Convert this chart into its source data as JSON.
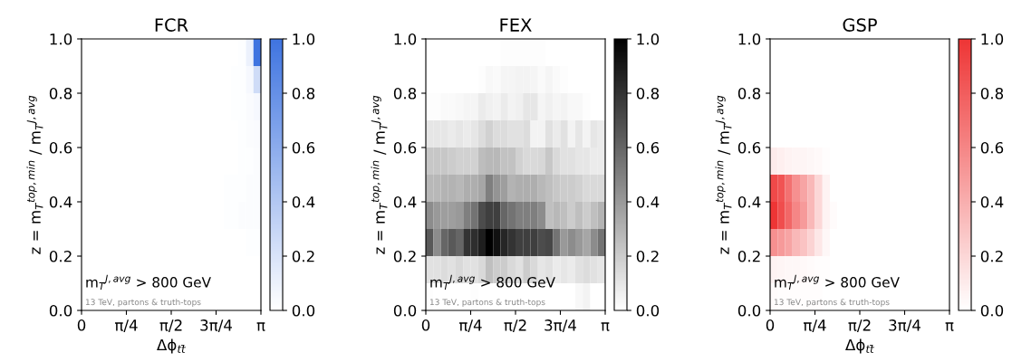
{
  "chart_data": [
    {
      "type": "heatmap",
      "title": "FCR",
      "color": "#3f74e0",
      "xlabel": "Δϕ$_{tt̄}$",
      "ylabel": "z = m$_{T}$$^{top,min}$ / m$_{T}$$^{J,avg}$",
      "annotations": [
        "m$_{T}$$^{J,avg}$ > 800 GeV",
        "13 TeV, partons & truth-tops"
      ],
      "xlim": [
        0,
        3.14159
      ],
      "xticks": [
        {
          "value": 0,
          "label": "0"
        },
        {
          "value": 0.7854,
          "label": "π/4"
        },
        {
          "value": 1.5708,
          "label": "π/2"
        },
        {
          "value": 2.3562,
          "label": "3π/4"
        },
        {
          "value": 3.14159,
          "label": "π"
        }
      ],
      "ylim": [
        0,
        1
      ],
      "yticks": [
        {
          "value": 0,
          "label": "0.0"
        },
        {
          "value": 0.2,
          "label": "0.2"
        },
        {
          "value": 0.4,
          "label": "0.4"
        },
        {
          "value": 0.6,
          "label": "0.6"
        },
        {
          "value": 0.8,
          "label": "0.8"
        },
        {
          "value": 1,
          "label": "1.0"
        }
      ],
      "clim": [
        0,
        1
      ],
      "cticks": [
        {
          "value": 0,
          "label": "0.0"
        },
        {
          "value": 0.2,
          "label": "0.2"
        },
        {
          "value": 0.4,
          "label": "0.4"
        },
        {
          "value": 0.6,
          "label": "0.6"
        },
        {
          "value": 0.8,
          "label": "0.8"
        },
        {
          "value": 1,
          "label": "1.0"
        }
      ],
      "cells": [
        [
          0,
          0,
          0,
          0,
          0,
          0,
          0,
          0,
          0,
          0,
          0,
          0,
          0,
          0,
          0,
          0,
          0,
          0,
          0,
          0,
          0,
          0.01,
          0.1,
          1.0
        ],
        [
          0,
          0,
          0,
          0,
          0,
          0,
          0,
          0,
          0,
          0,
          0,
          0,
          0,
          0,
          0,
          0,
          0,
          0,
          0,
          0,
          0.01,
          0.01,
          0.05,
          0.25
        ],
        [
          0,
          0,
          0,
          0,
          0,
          0,
          0,
          0,
          0,
          0,
          0,
          0,
          0,
          0,
          0,
          0,
          0,
          0,
          0,
          0,
          0.01,
          0.01,
          0.03,
          0.05
        ],
        [
          0,
          0,
          0,
          0,
          0,
          0,
          0,
          0,
          0,
          0,
          0,
          0,
          0,
          0,
          0,
          0,
          0,
          0,
          0,
          0,
          0,
          0.01,
          0.02,
          0.03
        ],
        [
          0,
          0,
          0,
          0,
          0,
          0,
          0,
          0,
          0,
          0,
          0,
          0,
          0,
          0,
          0,
          0,
          0,
          0,
          0,
          0,
          0,
          0.01,
          0.01,
          0.02
        ],
        [
          0,
          0,
          0,
          0,
          0,
          0,
          0,
          0,
          0,
          0,
          0,
          0,
          0,
          0,
          0,
          0,
          0,
          0,
          0,
          0.01,
          0.01,
          0.01,
          0.02,
          0.02
        ],
        [
          0,
          0,
          0,
          0,
          0,
          0,
          0,
          0,
          0,
          0,
          0,
          0,
          0,
          0,
          0,
          0,
          0,
          0,
          0,
          0.01,
          0.01,
          0.02,
          0.02,
          0.02
        ],
        [
          0,
          0,
          0,
          0,
          0,
          0,
          0,
          0,
          0,
          0,
          0,
          0,
          0,
          0,
          0,
          0,
          0,
          0,
          0,
          0,
          0,
          0,
          0.01,
          0.01
        ],
        [
          0,
          0,
          0,
          0,
          0,
          0,
          0,
          0,
          0,
          0,
          0,
          0,
          0,
          0,
          0,
          0,
          0,
          0,
          0,
          0,
          0,
          0,
          0,
          0
        ],
        [
          0,
          0,
          0,
          0,
          0,
          0,
          0,
          0,
          0,
          0,
          0,
          0,
          0,
          0,
          0,
          0,
          0,
          0,
          0,
          0,
          0,
          0,
          0,
          0
        ]
      ]
    },
    {
      "type": "heatmap",
      "title": "FEX",
      "color": "#000000",
      "xlabel": null,
      "ylabel": "z = m$_{T}$$^{top,min}$ / m$_{T}$$^{J,avg}$",
      "annotations": [
        "m$_{T}$$^{J,avg}$ > 800 GeV",
        "13 TeV, partons & truth-tops"
      ],
      "xlim": [
        0,
        3.14159
      ],
      "xticks": [
        {
          "value": 0,
          "label": "0"
        },
        {
          "value": 0.7854,
          "label": "π/4"
        },
        {
          "value": 1.5708,
          "label": "π/2"
        },
        {
          "value": 2.3562,
          "label": "3π/4"
        },
        {
          "value": 3.14159,
          "label": "π"
        }
      ],
      "ylim": [
        0,
        1
      ],
      "yticks": [
        {
          "value": 0,
          "label": "0.0"
        },
        {
          "value": 0.2,
          "label": "0.2"
        },
        {
          "value": 0.4,
          "label": "0.4"
        },
        {
          "value": 0.6,
          "label": "0.6"
        },
        {
          "value": 0.8,
          "label": "0.8"
        },
        {
          "value": 1,
          "label": "1.0"
        }
      ],
      "clim": [
        0,
        1
      ],
      "cticks": [
        {
          "value": 0,
          "label": "0.0"
        },
        {
          "value": 0.2,
          "label": "0.2"
        },
        {
          "value": 0.4,
          "label": "0.4"
        },
        {
          "value": 0.6,
          "label": "0.6"
        },
        {
          "value": 0.8,
          "label": "0.8"
        },
        {
          "value": 1,
          "label": "1.0"
        }
      ],
      "cells": [
        [
          0,
          0,
          0,
          0,
          0,
          0,
          0,
          0,
          0,
          0,
          0.01,
          0.01,
          0.01,
          0.01,
          0.01,
          0.01,
          0,
          0,
          0,
          0,
          0,
          0,
          0,
          0
        ],
        [
          0,
          0,
          0,
          0,
          0,
          0,
          0,
          0.01,
          0.03,
          0.02,
          0.04,
          0.04,
          0.05,
          0.05,
          0.04,
          0.02,
          0.04,
          0.02,
          0.01,
          0,
          0,
          0,
          0,
          0
        ],
        [
          0.01,
          0.01,
          0.02,
          0.02,
          0.03,
          0.04,
          0.04,
          0.08,
          0.06,
          0.05,
          0.08,
          0.05,
          0.06,
          0.1,
          0.1,
          0.04,
          0.06,
          0.04,
          0.05,
          0.03,
          0.03,
          0.01,
          0,
          0
        ],
        [
          0.1,
          0.1,
          0.1,
          0.08,
          0.1,
          0.08,
          0.1,
          0.14,
          0.18,
          0.14,
          0.14,
          0.12,
          0.12,
          0.14,
          0.05,
          0.05,
          0.12,
          0.08,
          0.12,
          0.05,
          0.1,
          0.05,
          0.1,
          0.08
        ],
        [
          0.22,
          0.22,
          0.22,
          0.2,
          0.18,
          0.18,
          0.18,
          0.26,
          0.28,
          0.28,
          0.24,
          0.24,
          0.18,
          0.15,
          0.15,
          0.16,
          0.22,
          0.15,
          0.12,
          0.12,
          0.1,
          0.1,
          0.08,
          0.08
        ],
        [
          0.28,
          0.28,
          0.3,
          0.3,
          0.28,
          0.32,
          0.32,
          0.35,
          0.5,
          0.42,
          0.38,
          0.3,
          0.32,
          0.32,
          0.32,
          0.28,
          0.25,
          0.22,
          0.2,
          0.2,
          0.18,
          0.15,
          0.15,
          0.15
        ],
        [
          0.45,
          0.4,
          0.38,
          0.38,
          0.4,
          0.5,
          0.55,
          0.7,
          0.75,
          0.75,
          0.6,
          0.55,
          0.5,
          0.5,
          0.5,
          0.45,
          0.25,
          0.28,
          0.25,
          0.2,
          0.25,
          0.2,
          0.25,
          0.3
        ],
        [
          0.65,
          0.45,
          0.6,
          0.65,
          0.6,
          0.8,
          0.82,
          0.88,
          1.0,
          0.93,
          0.85,
          0.8,
          0.75,
          0.75,
          0.75,
          0.7,
          0.72,
          0.55,
          0.4,
          0.45,
          0.4,
          0.35,
          0.45,
          0.55
        ],
        [
          0.12,
          0.12,
          0.14,
          0.12,
          0.15,
          0.12,
          0.12,
          0.15,
          0.25,
          0.2,
          0.2,
          0.15,
          0.12,
          0.2,
          0.15,
          0.1,
          0.12,
          0.08,
          0.1,
          0.08,
          0.12,
          0.14,
          0.12,
          0.1
        ],
        [
          0.01,
          0,
          0,
          0,
          0,
          0,
          0.01,
          0,
          0,
          0,
          0,
          0,
          0,
          0,
          0,
          0,
          0,
          0,
          0,
          0,
          0.03,
          0.05,
          0,
          0
        ]
      ]
    },
    {
      "type": "heatmap",
      "title": "GSP",
      "color": "#ee3535",
      "xlabel": "Δϕ$_{tt̄}$",
      "ylabel": "z = m$_{T}$$^{top,min}$ / m$_{T}$$^{J,avg}$",
      "annotations": [
        "m$_{T}$$^{J,avg}$ > 800 GeV",
        "13 TeV, partons & truth-tops"
      ],
      "xlim": [
        0,
        3.14159
      ],
      "xticks": [
        {
          "value": 0,
          "label": "0"
        },
        {
          "value": 0.7854,
          "label": "π/4"
        },
        {
          "value": 1.5708,
          "label": "π/2"
        },
        {
          "value": 2.3562,
          "label": "3π/4"
        },
        {
          "value": 3.14159,
          "label": "π"
        }
      ],
      "ylim": [
        0,
        1
      ],
      "yticks": [
        {
          "value": 0,
          "label": "0.0"
        },
        {
          "value": 0.2,
          "label": "0.2"
        },
        {
          "value": 0.4,
          "label": "0.4"
        },
        {
          "value": 0.6,
          "label": "0.6"
        },
        {
          "value": 0.8,
          "label": "0.8"
        },
        {
          "value": 1,
          "label": "1.0"
        }
      ],
      "clim": [
        0,
        1
      ],
      "cticks": [
        {
          "value": 0,
          "label": "0.0"
        },
        {
          "value": 0.2,
          "label": "0.2"
        },
        {
          "value": 0.4,
          "label": "0.4"
        },
        {
          "value": 0.6,
          "label": "0.6"
        },
        {
          "value": 0.8,
          "label": "0.8"
        },
        {
          "value": 1,
          "label": "1.0"
        }
      ],
      "cells": [
        [
          0,
          0,
          0,
          0,
          0,
          0,
          0,
          0,
          0,
          0,
          0,
          0,
          0,
          0,
          0,
          0,
          0,
          0,
          0,
          0,
          0,
          0,
          0,
          0
        ],
        [
          0,
          0,
          0,
          0,
          0,
          0,
          0,
          0,
          0,
          0,
          0,
          0,
          0,
          0,
          0,
          0,
          0,
          0,
          0,
          0,
          0,
          0,
          0,
          0
        ],
        [
          0,
          0,
          0,
          0,
          0,
          0,
          0,
          0,
          0,
          0,
          0,
          0,
          0,
          0,
          0,
          0,
          0,
          0,
          0,
          0,
          0,
          0,
          0,
          0
        ],
        [
          0,
          0,
          0,
          0,
          0,
          0,
          0,
          0,
          0,
          0,
          0,
          0,
          0,
          0,
          0,
          0,
          0,
          0,
          0,
          0,
          0,
          0,
          0,
          0
        ],
        [
          0.1,
          0.08,
          0.06,
          0.05,
          0.05,
          0.04,
          0.03,
          0.01,
          0,
          0,
          0,
          0,
          0,
          0,
          0,
          0,
          0,
          0,
          0,
          0,
          0,
          0,
          0,
          0
        ],
        [
          0.9,
          0.85,
          0.7,
          0.55,
          0.45,
          0.35,
          0.2,
          0.06,
          0,
          0,
          0,
          0,
          0,
          0,
          0,
          0,
          0,
          0,
          0,
          0,
          0,
          0,
          0,
          0
        ],
        [
          1.0,
          0.88,
          0.75,
          0.6,
          0.5,
          0.35,
          0.2,
          0.06,
          0.02,
          0,
          0,
          0,
          0,
          0,
          0,
          0,
          0,
          0,
          0,
          0,
          0,
          0,
          0,
          0
        ],
        [
          0.55,
          0.5,
          0.45,
          0.35,
          0.3,
          0.22,
          0.12,
          0.04,
          0,
          0,
          0,
          0,
          0,
          0,
          0,
          0,
          0,
          0,
          0,
          0,
          0,
          0,
          0,
          0
        ],
        [
          0.06,
          0.05,
          0.04,
          0.04,
          0.03,
          0.02,
          0.01,
          0.01,
          0,
          0,
          0,
          0,
          0,
          0,
          0,
          0,
          0,
          0,
          0,
          0,
          0,
          0,
          0,
          0
        ],
        [
          0.02,
          0.01,
          0.01,
          0.01,
          0.01,
          0.01,
          0.01,
          0,
          0,
          0,
          0,
          0,
          0,
          0,
          0,
          0,
          0,
          0,
          0,
          0,
          0,
          0,
          0,
          0
        ]
      ]
    }
  ]
}
